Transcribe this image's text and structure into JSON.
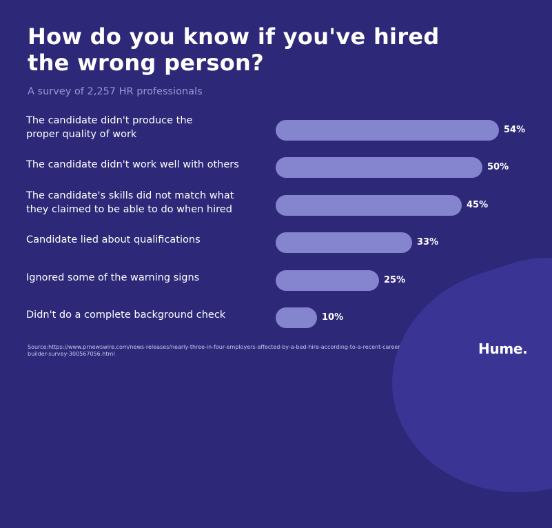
{
  "header": {
    "title_line1": "How do you know if you've hired",
    "title_line2": "the wrong person?",
    "subtitle": "A survey of 2,257 HR professionals"
  },
  "chart_data": {
    "type": "bar",
    "orientation": "horizontal",
    "categories": [
      [
        "The candidate didn't produce the",
        "proper quality of work"
      ],
      [
        "The candidate didn't work well with others"
      ],
      [
        "The candidate's skills did not match what",
        "they claimed to be able to do when hired"
      ],
      [
        "Candidate lied about qualifications"
      ],
      [
        "Ignored some of the warning signs"
      ],
      [
        "Didn't do a complete background check"
      ]
    ],
    "values": [
      54,
      50,
      45,
      33,
      25,
      10
    ],
    "value_labels": [
      "54%",
      "50%",
      "45%",
      "33%",
      "25%",
      "10%"
    ],
    "bar_color": "#8584cf",
    "xlim": [
      0,
      54
    ]
  },
  "footer": {
    "source_line1": "Source:https://www.prnewswire.com/news-releases/nearly-three-in-four-employers-affected-by-a-bad-hire-according-to-a-recent-career",
    "source_line2": "builder-survey-300567056.html",
    "logo": "Hume."
  },
  "colors": {
    "background": "#2e2878",
    "blob": "#3a3595",
    "subtitle": "#9a96d6"
  }
}
